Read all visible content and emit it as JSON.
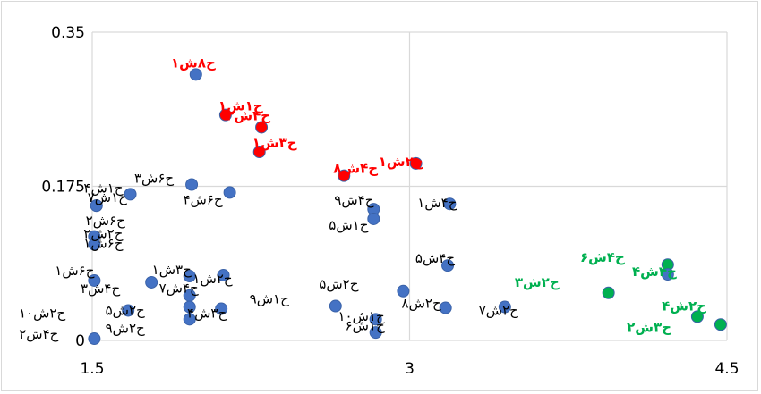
{
  "chart_data": {
    "type": "scatter",
    "title": "",
    "xlabel": "",
    "ylabel": "",
    "xlim": [
      1.5,
      4.5
    ],
    "ylim": [
      0,
      0.35
    ],
    "x_ticks": [
      "1.5",
      "3",
      "4.5"
    ],
    "y_ticks": [
      "0",
      "0.175",
      "0.35"
    ],
    "grid": "major gridlines on",
    "marker_color": "#4472c4",
    "colors": {
      "black": "#000000",
      "red": "#ff0000",
      "green": "#00b050"
    },
    "points": [
      {
        "x": 1.99,
        "y": 0.302,
        "label": "ح۸ش۱",
        "fill": "#4472c4",
        "label_color": "red"
      },
      {
        "x": 2.13,
        "y": 0.256,
        "label": "ح۱ش۱",
        "fill": "#ff0000",
        "label_color": "red"
      },
      {
        "x": 2.3,
        "y": 0.242,
        "label": "ح۴ش۳",
        "fill": "#ff0000",
        "label_color": "red"
      },
      {
        "x": 2.29,
        "y": 0.214,
        "label": "ح۳ش۱",
        "fill": "#ff0000",
        "label_color": "red"
      },
      {
        "x": 2.69,
        "y": 0.187,
        "label": "ح۴ش۸",
        "fill": "#ff0000",
        "label_color": "red"
      },
      {
        "x": 3.03,
        "y": 0.201,
        "label": "ح۲ش۱",
        "fill": "#ff0000",
        "label_color": "red"
      },
      {
        "x": 1.97,
        "y": 0.177,
        "label": "ح۶ش۳",
        "fill": "#4472c4",
        "label_color": "black"
      },
      {
        "x": 2.15,
        "y": 0.168,
        "label": "ح۶ش۴",
        "fill": "#4472c4",
        "label_color": "black"
      },
      {
        "x": 1.68,
        "y": 0.166,
        "label": "ح۱ش۴",
        "fill": "#4472c4",
        "label_color": "black"
      },
      {
        "x": 1.52,
        "y": 0.153,
        "label": "ح۱ش۷",
        "fill": "#4472c4",
        "label_color": "black"
      },
      {
        "x": 1.52,
        "y": 0.153,
        "label": "ح۶ش۲",
        "fill": "#4472c4",
        "label_color": "black"
      },
      {
        "x": 1.51,
        "y": 0.118,
        "label": "ح۲ش۲",
        "fill": "#4472c4",
        "label_color": "black"
      },
      {
        "x": 1.51,
        "y": 0.109,
        "label": "ح۶ش۱",
        "fill": "#4472c4",
        "label_color": "black"
      },
      {
        "x": 2.83,
        "y": 0.149,
        "label": "ح۴ش۹",
        "fill": "#4472c4",
        "label_color": "black"
      },
      {
        "x": 2.83,
        "y": 0.138,
        "label": "ح۱ش۵",
        "fill": "#4472c4",
        "label_color": "black"
      },
      {
        "x": 3.19,
        "y": 0.155,
        "label": "ح۴ش۱",
        "fill": "#4472c4",
        "label_color": "black"
      },
      {
        "x": 3.18,
        "y": 0.085,
        "label": "ح۴ش۵",
        "fill": "#4472c4",
        "label_color": "black"
      },
      {
        "x": 1.51,
        "y": 0.068,
        "label": "ح۶ش۱",
        "fill": "#4472c4",
        "label_color": "black"
      },
      {
        "x": 1.78,
        "y": 0.066,
        "label": "ح۴ش۳",
        "fill": "#4472c4",
        "label_color": "black"
      },
      {
        "x": 1.96,
        "y": 0.073,
        "label": "ح۳ش۱",
        "fill": "#4472c4",
        "label_color": "black"
      },
      {
        "x": 2.12,
        "y": 0.074,
        "label": "ح۲ش۱",
        "fill": "#4472c4",
        "label_color": "black"
      },
      {
        "x": 1.96,
        "y": 0.051,
        "label": "ح۴ش۷",
        "fill": "#4472c4",
        "label_color": "black"
      },
      {
        "x": 1.96,
        "y": 0.038,
        "label": "ح۲ش۵",
        "fill": "#4472c4",
        "label_color": "black"
      },
      {
        "x": 2.11,
        "y": 0.036,
        "label": "ح۳ش۴",
        "fill": "#4472c4",
        "label_color": "black"
      },
      {
        "x": 1.96,
        "y": 0.024,
        "label": "ح۲ش۹",
        "fill": "#4472c4",
        "label_color": "black"
      },
      {
        "x": 1.67,
        "y": 0.034,
        "label": "ح۲ش۱۰",
        "fill": "#4472c4",
        "label_color": "black"
      },
      {
        "x": 1.51,
        "y": 0.002,
        "label": "ح۴ش۲",
        "fill": "#4472c4",
        "label_color": "black"
      },
      {
        "x": 2.97,
        "y": 0.056,
        "label": "ح۲ش۵",
        "fill": "#4472c4",
        "label_color": "black"
      },
      {
        "x": 2.65,
        "y": 0.039,
        "label": "ح۱ش۹",
        "fill": "#4472c4",
        "label_color": "black"
      },
      {
        "x": 3.17,
        "y": 0.037,
        "label": "ح۲ش۸",
        "fill": "#4472c4",
        "label_color": "black"
      },
      {
        "x": 3.45,
        "y": 0.038,
        "label": "ح۲ش۷",
        "fill": "#4472c4",
        "label_color": "black"
      },
      {
        "x": 2.84,
        "y": 0.024,
        "label": "ح۱ش۶",
        "fill": "#4472c4",
        "label_color": "black"
      },
      {
        "x": 2.84,
        "y": 0.009,
        "label": "ح۱ش۱۰",
        "fill": "#4472c4",
        "label_color": "black"
      },
      {
        "x": 4.22,
        "y": 0.086,
        "label": "ح۴ش۶",
        "fill": "#00b050",
        "label_color": "green"
      },
      {
        "x": 4.22,
        "y": 0.075,
        "label": "ح۴ش۴",
        "fill": "#4472c4",
        "label_color": "green"
      },
      {
        "x": 3.94,
        "y": 0.054,
        "label": "ح۲ش۳",
        "fill": "#00b050",
        "label_color": "green"
      },
      {
        "x": 4.36,
        "y": 0.027,
        "label": "ح۲ش۴",
        "fill": "#00b050",
        "label_color": "green"
      },
      {
        "x": 4.47,
        "y": 0.018,
        "label": "ح۳ش۲",
        "fill": "#00b050",
        "label_color": "green"
      }
    ]
  }
}
